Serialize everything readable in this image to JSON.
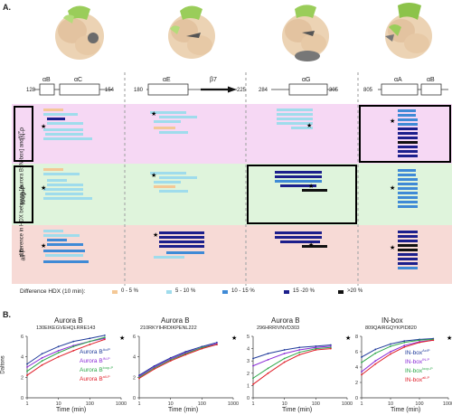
{
  "panel_a": {
    "letter": "A.",
    "y_axis_label": "difference in HDX between [Aurora B:IN-box] and",
    "y_axis_superscript": "Ac/P",
    "row_labels": [
      "IN-P",
      "loop-P",
      "all-P"
    ],
    "row_colors": [
      "#f6d8f4",
      "#dff4dc",
      "#f7dad6"
    ],
    "columns": [
      {
        "start": "128",
        "end": "154",
        "segments": [
          "αB",
          "αC"
        ]
      },
      {
        "start": "180",
        "end": "225",
        "segments": [
          "αE",
          "β7"
        ]
      },
      {
        "start": "284",
        "end": "305",
        "segments": [
          "αG"
        ]
      },
      {
        "start": "805",
        "end": "",
        "segments": [
          "αA",
          "αB"
        ]
      }
    ],
    "legend": {
      "title": "Difference HDX (10 min):",
      "items": [
        {
          "label": "0 - 5 %",
          "color": "#f4c896"
        },
        {
          "label": "5 - 10 %",
          "color": "#9fdcec"
        },
        {
          "label": "10 - 15 %",
          "color": "#3f8ad6"
        },
        {
          "label": "15 -20 %",
          "color": "#1c1f8c"
        },
        {
          "label": ">20 %",
          "color": "#111111"
        }
      ]
    }
  },
  "panel_b": {
    "letter": "B.",
    "charts": [
      {
        "title": "Aurora B",
        "subtitle": "130EIKEGVEHQLRRE143",
        "ylabel": "Daltons",
        "xlabel": "Time (min)"
      },
      {
        "title": "Aurora B",
        "subtitle": "210RKYIHRDIKPENL222",
        "ylabel": "",
        "xlabel": "Time (min)"
      },
      {
        "title": "Aurora B",
        "subtitle": "296HRRIVNVD303",
        "ylabel": "",
        "xlabel": "Time (min)"
      },
      {
        "title": "IN-box",
        "subtitle": "809QAIRGQYKPID820",
        "ylabel": "",
        "xlabel": "Time (min)"
      }
    ],
    "legend_left": [
      {
        "label": "Aurora B",
        "sup": "Ac/P",
        "color": "#1f3a9a"
      },
      {
        "label": "Aurora B",
        "sup": "IN-P",
        "color": "#8a2bd6"
      },
      {
        "label": "Aurora B",
        "sup": "loop-P",
        "color": "#2ea84a"
      },
      {
        "label": "Aurora B",
        "sup": "all-P",
        "color": "#e01f2a"
      }
    ],
    "legend_right": [
      {
        "label": "IN-box",
        "sup": "Ac/P",
        "color": "#1f3a9a"
      },
      {
        "label": "IN-box",
        "sup": "IN-P",
        "color": "#8a2bd6"
      },
      {
        "label": "IN-box",
        "sup": "loop-P",
        "color": "#2ea84a"
      },
      {
        "label": "IN-box",
        "sup": "all-P",
        "color": "#e01f2a"
      }
    ]
  },
  "chart_data": [
    {
      "type": "line",
      "title": "Aurora B",
      "subtitle": "130EIKEGVEHQLRRE143",
      "xlabel": "Time (min)",
      "ylabel": "Daltons",
      "xscale": "log",
      "xlim": [
        1,
        1000
      ],
      "ylim": [
        0,
        6
      ],
      "yticks": [
        0,
        2,
        4,
        6
      ],
      "xticks": [
        1,
        10,
        100,
        1000
      ],
      "x": [
        1,
        3,
        10,
        30,
        100,
        300
      ],
      "series": [
        {
          "name": "Aurora B Ac/P",
          "color": "#1f3a9a",
          "values": [
            3.3,
            4.3,
            5.0,
            5.5,
            5.8,
            6.1
          ]
        },
        {
          "name": "Aurora B IN-P",
          "color": "#8a2bd6",
          "values": [
            3.0,
            3.9,
            4.6,
            5.1,
            5.5,
            5.8
          ]
        },
        {
          "name": "Aurora B loop-P",
          "color": "#2ea84a",
          "values": [
            2.6,
            3.6,
            4.4,
            5.0,
            5.5,
            5.9
          ]
        },
        {
          "name": "Aurora B all-P",
          "color": "#e01f2a",
          "values": [
            2.2,
            3.2,
            4.0,
            4.6,
            5.2,
            5.7
          ]
        }
      ]
    },
    {
      "type": "line",
      "title": "Aurora B",
      "subtitle": "210RKYIHRDIKPENL222",
      "xlabel": "Time (min)",
      "ylabel": "",
      "xscale": "log",
      "xlim": [
        1,
        1000
      ],
      "ylim": [
        0,
        6
      ],
      "yticks": [
        0,
        2,
        4,
        6
      ],
      "xticks": [
        1,
        10,
        100,
        1000
      ],
      "x": [
        1,
        3,
        10,
        30,
        100,
        300
      ],
      "series": [
        {
          "name": "Aurora B Ac/P",
          "color": "#1f3a9a",
          "values": [
            2.2,
            3.1,
            3.9,
            4.5,
            5.0,
            5.4
          ]
        },
        {
          "name": "Aurora B IN-P",
          "color": "#8a2bd6",
          "values": [
            2.1,
            3.0,
            3.8,
            4.4,
            4.9,
            5.3
          ]
        },
        {
          "name": "Aurora B loop-P",
          "color": "#2ea84a",
          "values": [
            2.0,
            2.9,
            3.7,
            4.3,
            4.9,
            5.2
          ]
        },
        {
          "name": "Aurora B all-P",
          "color": "#e01f2a",
          "values": [
            1.9,
            2.8,
            3.6,
            4.2,
            4.8,
            5.2
          ]
        }
      ]
    },
    {
      "type": "line",
      "title": "Aurora B",
      "subtitle": "296HRRIVNVD303",
      "xlabel": "Time (min)",
      "ylabel": "",
      "xscale": "log",
      "xlim": [
        1,
        1000
      ],
      "ylim": [
        0,
        5
      ],
      "yticks": [
        0,
        1,
        2,
        3,
        4,
        5
      ],
      "xticks": [
        1,
        10,
        100,
        1000
      ],
      "x": [
        1,
        3,
        10,
        30,
        100,
        300
      ],
      "series": [
        {
          "name": "Aurora B Ac/P",
          "color": "#1f3a9a",
          "values": [
            3.2,
            3.6,
            3.9,
            4.1,
            4.2,
            4.3
          ]
        },
        {
          "name": "Aurora B IN-P",
          "color": "#8a2bd6",
          "values": [
            2.6,
            3.1,
            3.6,
            3.9,
            4.1,
            4.2
          ]
        },
        {
          "name": "Aurora B loop-P",
          "color": "#2ea84a",
          "values": [
            1.6,
            2.4,
            3.2,
            3.7,
            4.0,
            4.1
          ]
        },
        {
          "name": "Aurora B all-P",
          "color": "#e01f2a",
          "values": [
            1.1,
            2.0,
            2.9,
            3.5,
            3.9,
            4.0
          ]
        }
      ]
    },
    {
      "type": "line",
      "title": "IN-box",
      "subtitle": "809QAIRGQYKPID820",
      "xlabel": "Time (min)",
      "ylabel": "",
      "xscale": "log",
      "xlim": [
        1,
        1000
      ],
      "ylim": [
        0,
        8
      ],
      "yticks": [
        0,
        2,
        4,
        6,
        8
      ],
      "xticks": [
        1,
        10,
        100,
        1000
      ],
      "x": [
        1,
        3,
        10,
        30,
        100,
        300
      ],
      "series": [
        {
          "name": "IN-box Ac/P",
          "color": "#1f3a9a",
          "values": [
            5.3,
            6.3,
            7.0,
            7.4,
            7.6,
            7.7
          ]
        },
        {
          "name": "IN-box IN-P",
          "color": "#8a2bd6",
          "values": [
            3.4,
            4.8,
            6.0,
            6.8,
            7.3,
            7.5
          ]
        },
        {
          "name": "IN-box loop-P",
          "color": "#2ea84a",
          "values": [
            4.6,
            5.8,
            6.7,
            7.2,
            7.5,
            7.6
          ]
        },
        {
          "name": "IN-box all-P",
          "color": "#e01f2a",
          "values": [
            3.0,
            4.4,
            5.7,
            6.6,
            7.2,
            7.5
          ]
        }
      ]
    }
  ]
}
